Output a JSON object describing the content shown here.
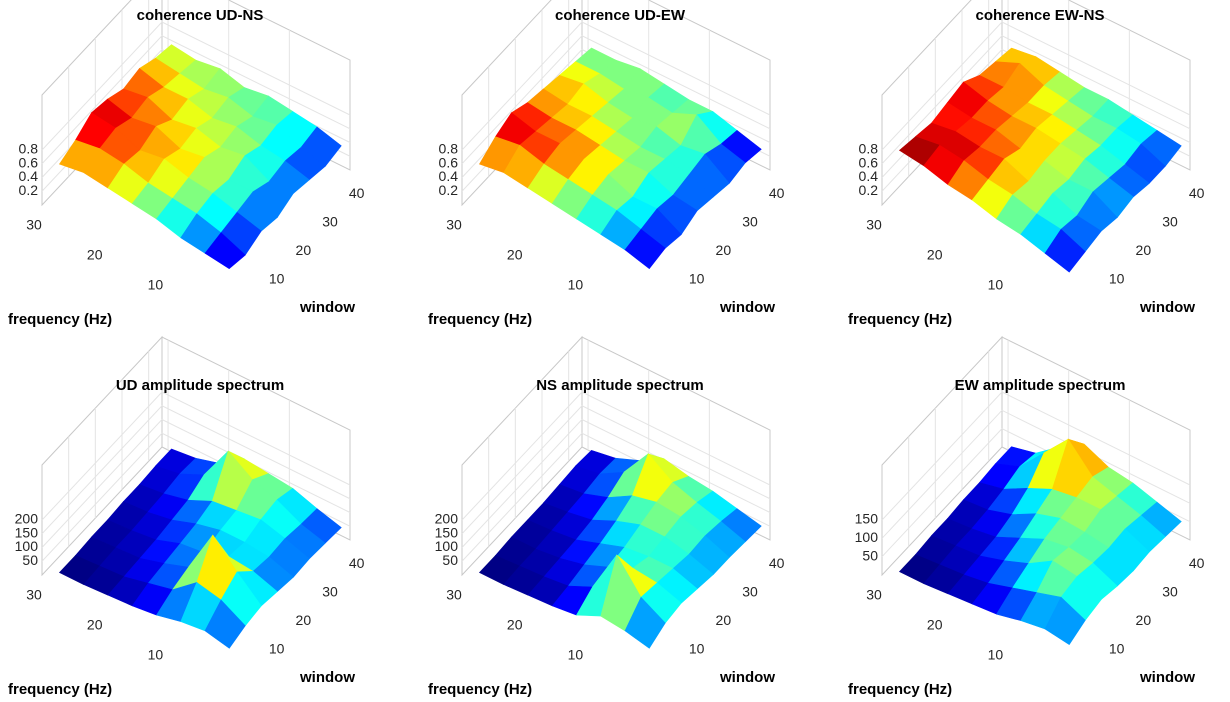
{
  "chart_data": [
    {
      "type": "surface",
      "title": "coherence UD-NS",
      "xlabel": "window",
      "ylabel": "frequency (Hz)",
      "colormap": "jet",
      "x": [
        2,
        8,
        14,
        20,
        26,
        32,
        38,
        44
      ],
      "y": [
        1,
        5,
        9,
        13,
        17,
        21,
        25,
        29
      ],
      "z": [
        [
          0.3,
          0.25,
          0.35,
          0.3,
          0.4,
          0.35,
          0.3,
          0.35
        ],
        [
          0.35,
          0.4,
          0.45,
          0.5,
          0.4,
          0.45,
          0.4,
          0.45
        ],
        [
          0.4,
          0.5,
          0.55,
          0.5,
          0.6,
          0.5,
          0.55,
          0.5
        ],
        [
          0.5,
          0.55,
          0.6,
          0.65,
          0.55,
          0.6,
          0.5,
          0.55
        ],
        [
          0.55,
          0.6,
          0.7,
          0.6,
          0.65,
          0.55,
          0.6,
          0.5
        ],
        [
          0.6,
          0.7,
          0.65,
          0.75,
          0.6,
          0.65,
          0.55,
          0.6
        ],
        [
          0.65,
          0.75,
          0.8,
          0.7,
          0.75,
          0.65,
          0.6,
          0.55
        ],
        [
          0.6,
          0.7,
          0.85,
          0.8,
          0.7,
          0.75,
          0.65,
          0.6
        ]
      ],
      "xlim": [
        0,
        45
      ],
      "ylim": [
        0,
        31
      ],
      "zlim": [
        0,
        1.6
      ],
      "xticks": [
        10,
        20,
        30,
        40
      ],
      "yticks": [
        10,
        20,
        30
      ],
      "zticks": [
        0.2,
        0.4,
        0.6,
        0.8
      ]
    },
    {
      "type": "surface",
      "title": "coherence UD-EW",
      "xlabel": "window",
      "ylabel": "frequency (Hz)",
      "colormap": "jet",
      "x": [
        2,
        8,
        14,
        20,
        26,
        32,
        38,
        44
      ],
      "y": [
        1,
        5,
        9,
        13,
        17,
        21,
        25,
        29
      ],
      "z": [
        [
          0.3,
          0.35,
          0.3,
          0.4,
          0.35,
          0.3,
          0.35,
          0.3
        ],
        [
          0.4,
          0.45,
          0.5,
          0.45,
          0.5,
          0.55,
          0.45,
          0.4
        ],
        [
          0.45,
          0.55,
          0.5,
          0.6,
          0.55,
          0.5,
          0.7,
          0.5
        ],
        [
          0.5,
          0.6,
          0.65,
          0.6,
          0.55,
          0.6,
          0.55,
          0.5
        ],
        [
          0.55,
          0.65,
          0.7,
          0.65,
          0.6,
          0.55,
          0.6,
          0.55
        ],
        [
          0.6,
          0.7,
          0.75,
          0.7,
          0.65,
          0.6,
          0.55,
          0.6
        ],
        [
          0.65,
          0.8,
          0.75,
          0.7,
          0.65,
          0.7,
          0.6,
          0.55
        ],
        [
          0.6,
          0.75,
          0.85,
          0.75,
          0.7,
          0.65,
          0.6,
          0.55
        ]
      ],
      "xlim": [
        0,
        45
      ],
      "ylim": [
        0,
        31
      ],
      "zlim": [
        0,
        1.6
      ],
      "xticks": [
        10,
        20,
        30,
        40
      ],
      "yticks": [
        10,
        20,
        30
      ],
      "zticks": [
        0.2,
        0.4,
        0.6,
        0.8
      ]
    },
    {
      "type": "surface",
      "title": "coherence EW-NS",
      "xlabel": "window",
      "ylabel": "frequency (Hz)",
      "colormap": "jet",
      "x": [
        2,
        8,
        14,
        20,
        26,
        32,
        38,
        44
      ],
      "y": [
        1,
        5,
        9,
        13,
        17,
        21,
        25,
        29
      ],
      "z": [
        [
          0.25,
          0.3,
          0.35,
          0.3,
          0.35,
          0.3,
          0.3,
          0.35
        ],
        [
          0.35,
          0.45,
          0.4,
          0.5,
          0.45,
          0.4,
          0.45,
          0.4
        ],
        [
          0.45,
          0.5,
          0.55,
          0.5,
          0.55,
          0.5,
          0.5,
          0.45
        ],
        [
          0.5,
          0.6,
          0.55,
          0.6,
          0.6,
          0.55,
          0.5,
          0.5
        ],
        [
          0.6,
          0.65,
          0.7,
          0.6,
          0.65,
          0.6,
          0.55,
          0.5
        ],
        [
          0.65,
          0.75,
          0.7,
          0.7,
          0.65,
          0.6,
          0.6,
          0.55
        ],
        [
          0.75,
          0.8,
          0.75,
          0.7,
          0.7,
          0.65,
          0.75,
          0.6
        ],
        [
          0.8,
          0.75,
          0.7,
          0.75,
          0.8,
          0.65,
          0.6,
          0.55
        ]
      ],
      "xlim": [
        0,
        45
      ],
      "ylim": [
        0,
        31
      ],
      "zlim": [
        0,
        1.6
      ],
      "xticks": [
        10,
        20,
        30,
        40
      ],
      "yticks": [
        10,
        20,
        30
      ],
      "zticks": [
        0.2,
        0.4,
        0.6,
        0.8
      ]
    },
    {
      "type": "surface",
      "title": "UD amplitude spectrum",
      "xlabel": "window",
      "ylabel": "frequency (Hz)",
      "colormap": "jet",
      "x": [
        2,
        8,
        14,
        20,
        26,
        32,
        38,
        44
      ],
      "y": [
        1,
        5,
        9,
        13,
        17,
        21,
        25,
        29
      ],
      "z": [
        [
          40,
          60,
          70,
          60,
          50,
          55,
          50,
          45
        ],
        [
          60,
          110,
          150,
          90,
          80,
          85,
          75,
          70
        ],
        [
          50,
          130,
          240,
          100,
          90,
          110,
          120,
          100
        ],
        [
          30,
          60,
          80,
          70,
          90,
          100,
          150,
          110
        ],
        [
          20,
          40,
          50,
          60,
          70,
          90,
          210,
          120
        ],
        [
          15,
          20,
          25,
          30,
          40,
          50,
          80,
          60
        ],
        [
          10,
          15,
          20,
          20,
          25,
          30,
          40,
          35
        ],
        [
          10,
          10,
          15,
          15,
          20,
          20,
          25,
          25
        ]
      ],
      "xlim": [
        0,
        45
      ],
      "ylim": [
        0,
        31
      ],
      "zlim": [
        0,
        400
      ],
      "xticks": [
        10,
        20,
        30,
        40
      ],
      "yticks": [
        10,
        20,
        30
      ],
      "zticks": [
        50,
        100,
        150,
        200
      ]
    },
    {
      "type": "surface",
      "title": "NS amplitude spectrum",
      "xlabel": "window",
      "ylabel": "frequency (Hz)",
      "colormap": "jet",
      "x": [
        2,
        8,
        14,
        20,
        26,
        32,
        38,
        44
      ],
      "y": [
        1,
        5,
        9,
        13,
        17,
        21,
        25,
        29
      ],
      "z": [
        [
          40,
          70,
          80,
          70,
          60,
          60,
          55,
          50
        ],
        [
          60,
          120,
          110,
          100,
          90,
          95,
          85,
          70
        ],
        [
          70,
          230,
          120,
          100,
          110,
          120,
          110,
          90
        ],
        [
          30,
          70,
          80,
          90,
          110,
          130,
          140,
          100
        ],
        [
          20,
          30,
          45,
          60,
          80,
          110,
          200,
          120
        ],
        [
          15,
          20,
          25,
          30,
          40,
          60,
          90,
          70
        ],
        [
          10,
          15,
          15,
          20,
          25,
          30,
          40,
          35
        ],
        [
          10,
          10,
          15,
          15,
          15,
          20,
          25,
          20
        ]
      ],
      "xlim": [
        0,
        45
      ],
      "ylim": [
        0,
        31
      ],
      "zlim": [
        0,
        400
      ],
      "xticks": [
        10,
        20,
        30,
        40
      ],
      "yticks": [
        10,
        20,
        30
      ],
      "zticks": [
        50,
        100,
        150,
        200
      ]
    },
    {
      "type": "surface",
      "title": "EW amplitude spectrum",
      "xlabel": "window",
      "ylabel": "frequency (Hz)",
      "colormap": "jet",
      "x": [
        2,
        8,
        14,
        20,
        26,
        32,
        38,
        44
      ],
      "y": [
        1,
        5,
        9,
        13,
        17,
        21,
        25,
        29
      ],
      "z": [
        [
          40,
          60,
          70,
          60,
          55,
          60,
          55,
          50
        ],
        [
          50,
          90,
          100,
          90,
          85,
          90,
          80,
          70
        ],
        [
          40,
          70,
          110,
          100,
          95,
          110,
          100,
          90
        ],
        [
          25,
          50,
          70,
          90,
          100,
          110,
          120,
          100
        ],
        [
          20,
          30,
          45,
          60,
          80,
          100,
          190,
          130
        ],
        [
          15,
          20,
          25,
          30,
          45,
          70,
          120,
          90
        ],
        [
          10,
          15,
          20,
          20,
          25,
          35,
          50,
          40
        ],
        [
          10,
          10,
          15,
          15,
          20,
          20,
          25,
          25
        ]
      ],
      "xlim": [
        0,
        45
      ],
      "ylim": [
        0,
        31
      ],
      "zlim": [
        0,
        300
      ],
      "xticks": [
        10,
        20,
        30,
        40
      ],
      "yticks": [
        10,
        20,
        30
      ],
      "zticks": [
        50,
        100,
        150
      ]
    }
  ]
}
